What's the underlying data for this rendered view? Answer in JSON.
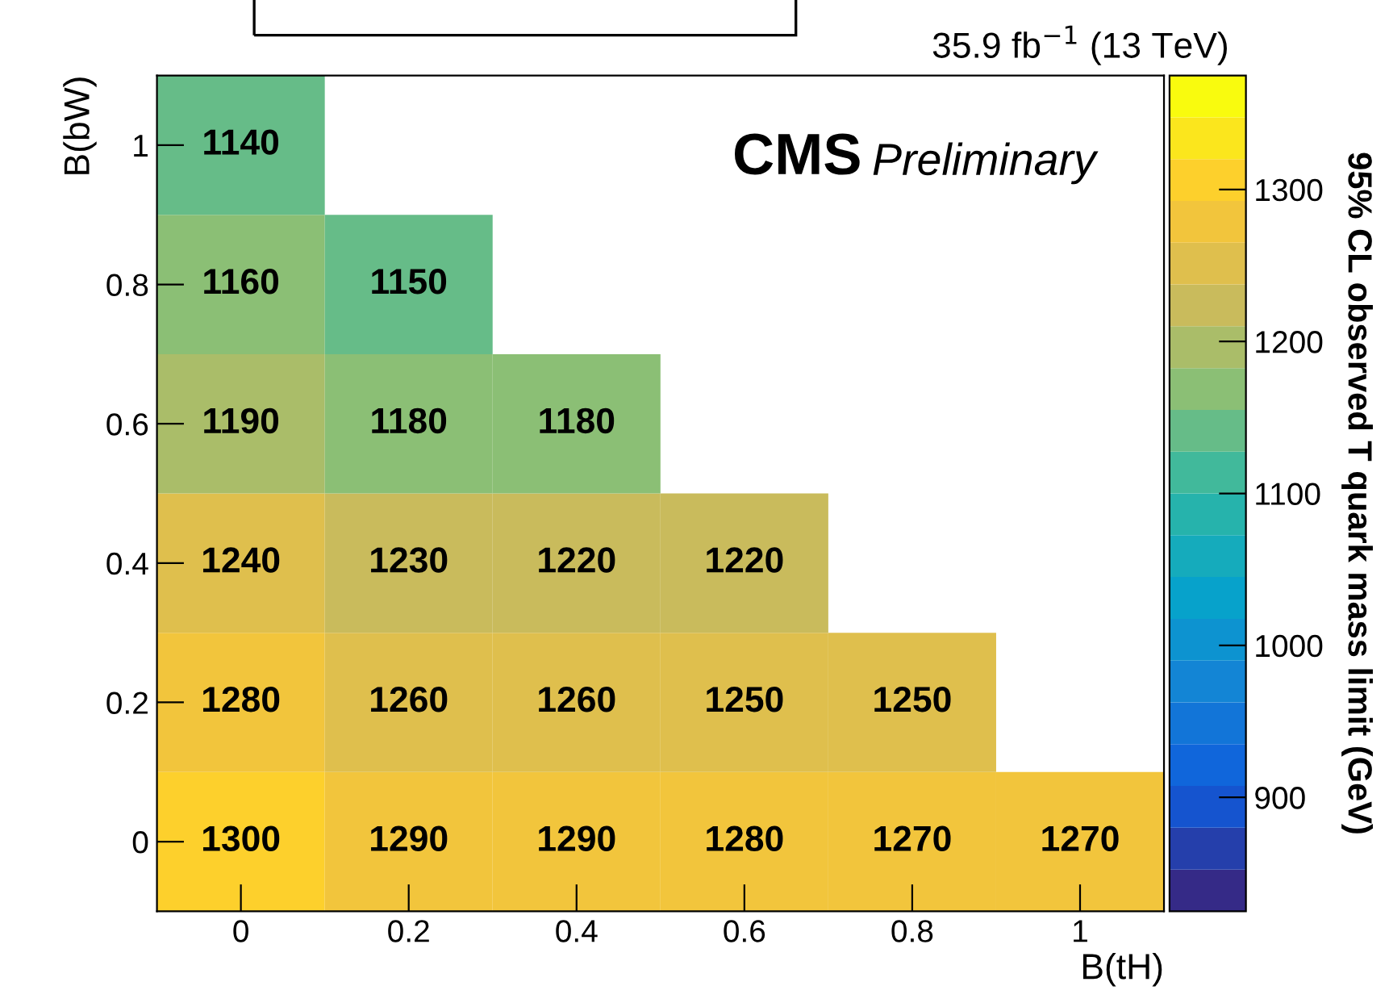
{
  "chart_data": {
    "type": "heatmap",
    "categories": [
      "0",
      "0.2",
      "0.4",
      "0.6",
      "0.8",
      "1"
    ],
    "y_categories": [
      "1",
      "0.8",
      "0.6",
      "0.4",
      "0.2",
      "0"
    ],
    "cells": [
      [
        1140,
        null,
        null,
        null,
        null,
        null
      ],
      [
        1160,
        1150,
        null,
        null,
        null,
        null
      ],
      [
        1190,
        1180,
        1180,
        null,
        null,
        null
      ],
      [
        1240,
        1230,
        1220,
        1220,
        null,
        null
      ],
      [
        1280,
        1260,
        1260,
        1250,
        1250,
        null
      ],
      [
        1300,
        1290,
        1290,
        1280,
        1270,
        1270
      ]
    ],
    "data_labels": true,
    "clim": [
      825,
      1375
    ],
    "cticks": [
      900,
      1000,
      1100,
      1200,
      1300
    ],
    "xlabel": "B(tH)",
    "ylabel": "B(bW)",
    "clabel": "95% CL observed T quark mass limit (GeV)",
    "annotations": [
      "35.9 fb$^{−1}$ (13 TeV)",
      "CMS",
      "Preliminary"
    ],
    "grid": false
  }
}
